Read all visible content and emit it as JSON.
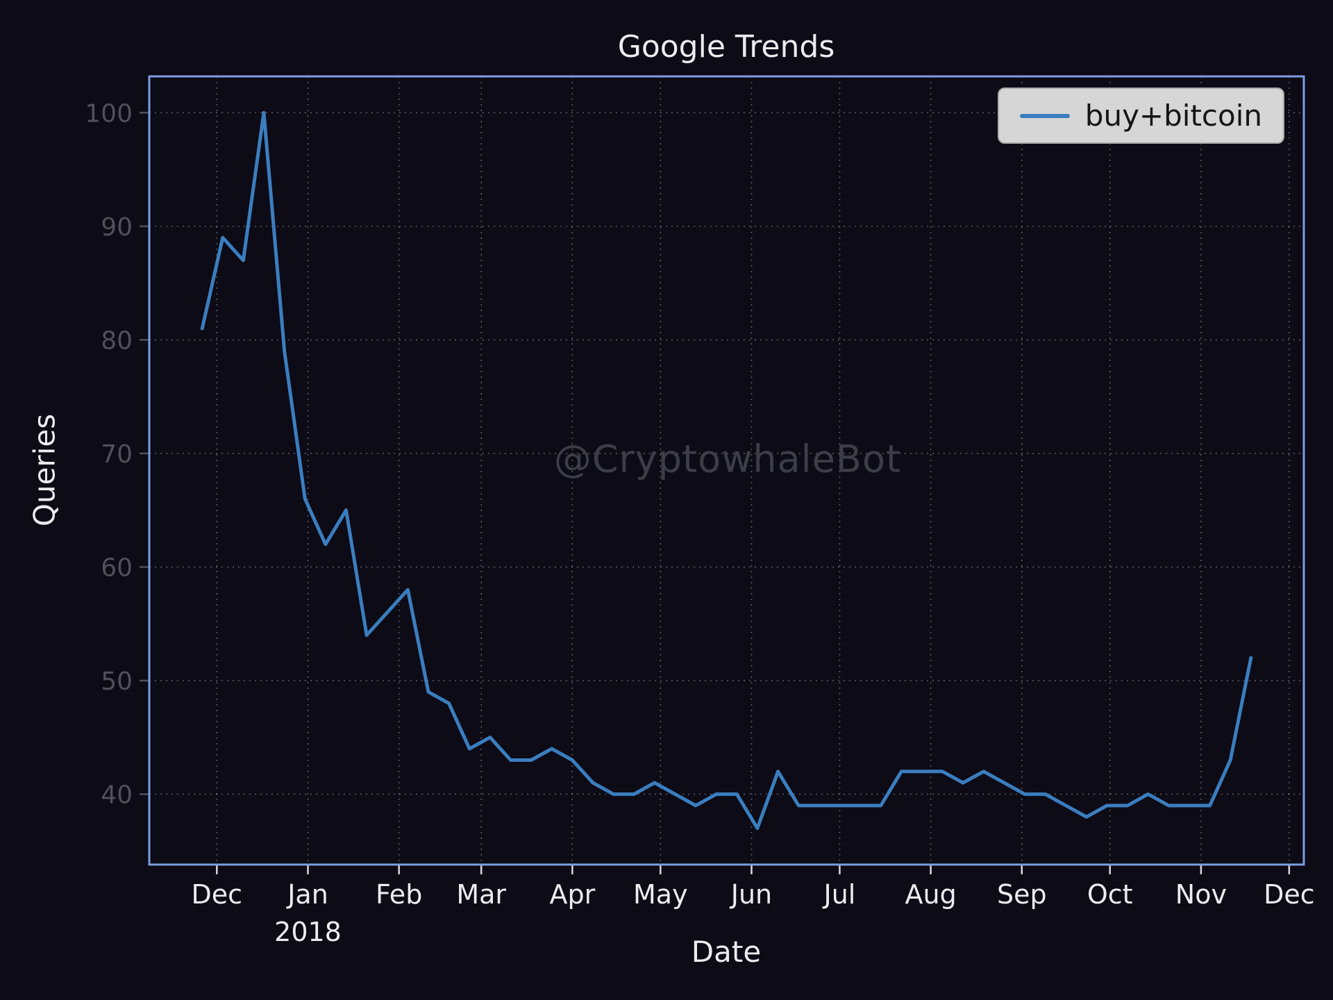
{
  "chart_data": {
    "type": "line",
    "title": "Google Trends",
    "xlabel": "Date",
    "ylabel": "Queries",
    "watermark": "@CryptowhaleBot",
    "grid": true,
    "legend": {
      "position": "upper right",
      "entries": [
        {
          "label": "buy+bitcoin",
          "color": "#3a7ebf"
        }
      ]
    },
    "x_range": [
      "2017-11-08",
      "2018-12-06"
    ],
    "y_range": [
      33.8,
      103.2
    ],
    "y_ticks": [
      40,
      50,
      60,
      70,
      80,
      90,
      100
    ],
    "x_ticks": [
      {
        "date": "2017-12-01",
        "label": "Dec"
      },
      {
        "date": "2018-01-01",
        "label": "Jan",
        "sublabel": "2018"
      },
      {
        "date": "2018-02-01",
        "label": "Feb"
      },
      {
        "date": "2018-03-01",
        "label": "Mar"
      },
      {
        "date": "2018-04-01",
        "label": "Apr"
      },
      {
        "date": "2018-05-01",
        "label": "May"
      },
      {
        "date": "2018-06-01",
        "label": "Jun"
      },
      {
        "date": "2018-07-01",
        "label": "Jul"
      },
      {
        "date": "2018-08-01",
        "label": "Aug"
      },
      {
        "date": "2018-09-01",
        "label": "Sep"
      },
      {
        "date": "2018-10-01",
        "label": "Oct"
      },
      {
        "date": "2018-11-01",
        "label": "Nov"
      },
      {
        "date": "2018-12-01",
        "label": "Dec"
      }
    ],
    "series": [
      {
        "name": "buy+bitcoin",
        "color": "#3a7ebf",
        "x": [
          "2017-11-26",
          "2017-12-03",
          "2017-12-10",
          "2017-12-17",
          "2017-12-24",
          "2017-12-31",
          "2018-01-07",
          "2018-01-14",
          "2018-01-21",
          "2018-01-28",
          "2018-02-04",
          "2018-02-11",
          "2018-02-18",
          "2018-02-25",
          "2018-03-04",
          "2018-03-11",
          "2018-03-18",
          "2018-03-25",
          "2018-04-01",
          "2018-04-08",
          "2018-04-15",
          "2018-04-22",
          "2018-04-29",
          "2018-05-06",
          "2018-05-13",
          "2018-05-20",
          "2018-05-27",
          "2018-06-03",
          "2018-06-10",
          "2018-06-17",
          "2018-06-24",
          "2018-07-01",
          "2018-07-08",
          "2018-07-15",
          "2018-07-22",
          "2018-07-29",
          "2018-08-05",
          "2018-08-12",
          "2018-08-19",
          "2018-08-26",
          "2018-09-02",
          "2018-09-09",
          "2018-09-16",
          "2018-09-23",
          "2018-09-30",
          "2018-10-07",
          "2018-10-14",
          "2018-10-21",
          "2018-10-28",
          "2018-11-04",
          "2018-11-11",
          "2018-11-18"
        ],
        "values": [
          81,
          89,
          87,
          100,
          79,
          66,
          62,
          65,
          54,
          56,
          58,
          49,
          48,
          44,
          45,
          43,
          43,
          44,
          43,
          41,
          40,
          40,
          41,
          40,
          39,
          40,
          40,
          37,
          42,
          39,
          39,
          39,
          39,
          39,
          42,
          42,
          42,
          41,
          42,
          41,
          40,
          40,
          39,
          38,
          39,
          39,
          40,
          39,
          39,
          39,
          43,
          52
        ]
      }
    ],
    "colors": {
      "background": "#0d0b16",
      "axes_frame": "#7d9de2",
      "gridline": "#ffffff",
      "tick": "#d8d8de",
      "ytick": "#50505a",
      "text_primary": "#ececf0",
      "watermark_text": "#3d3d48",
      "legend_bg": "#d6d6d6",
      "legend_text": "#151515"
    }
  }
}
